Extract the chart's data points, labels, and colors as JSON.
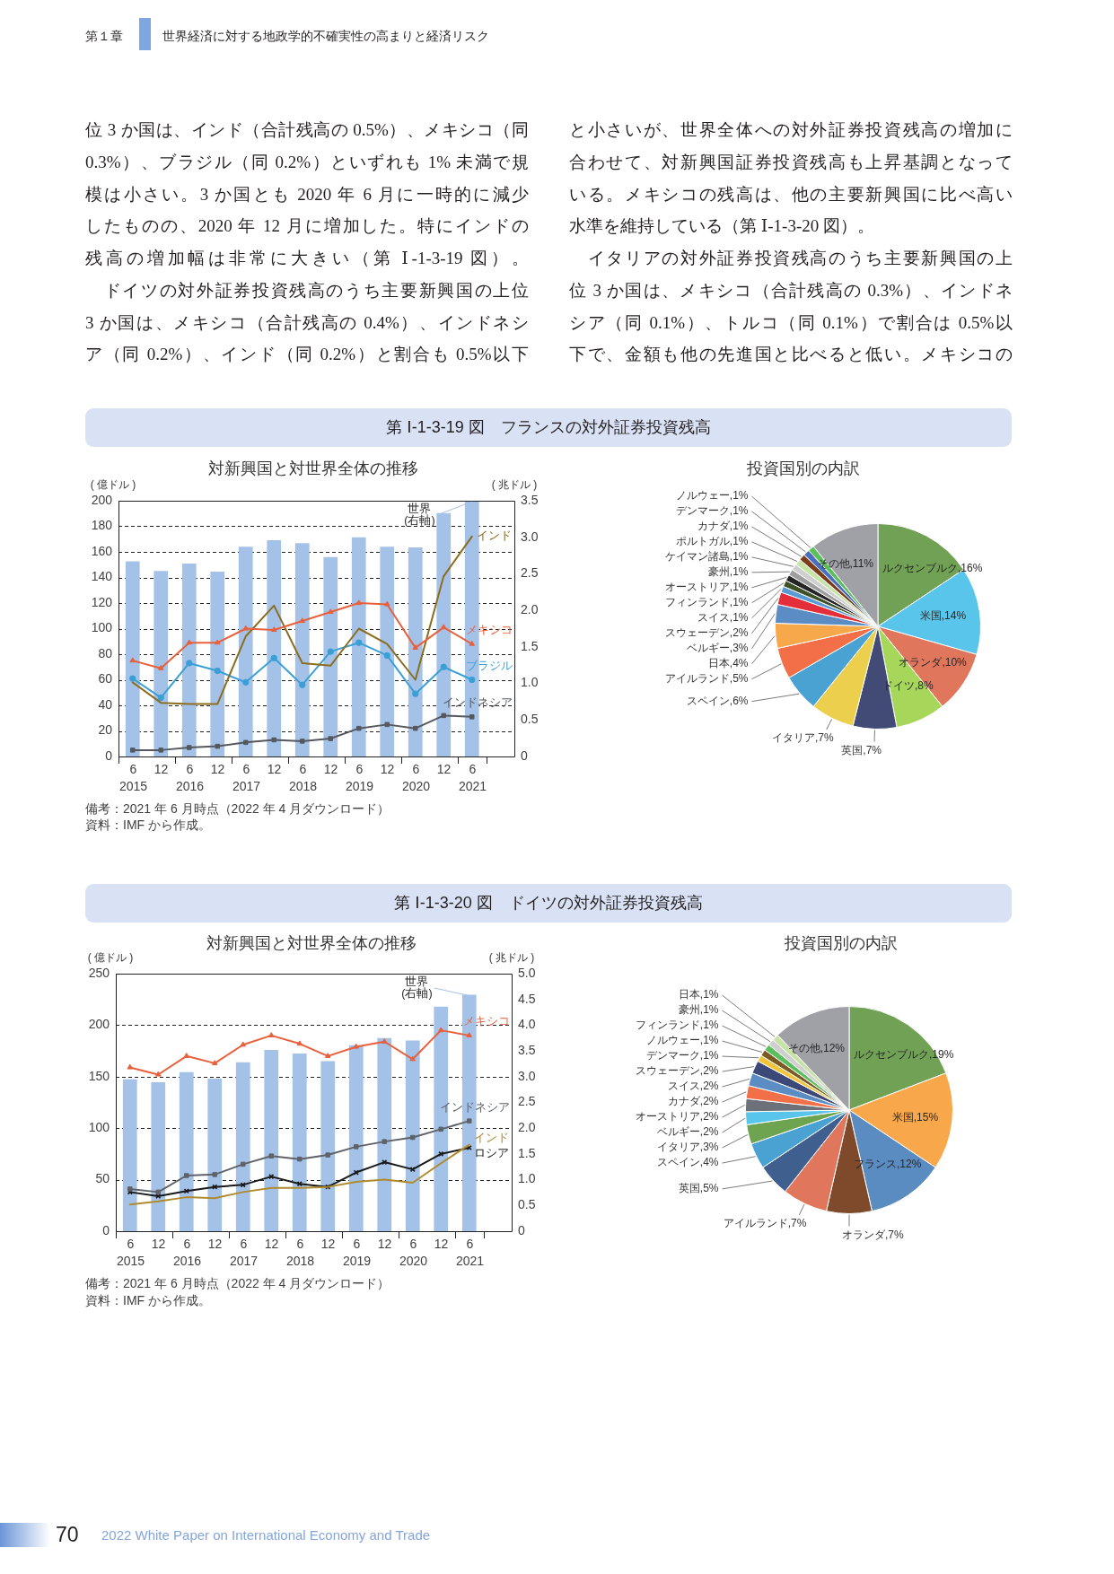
{
  "chart_data": [
    {
      "type": "other",
      "annotations": [
        "第１章",
        "世界経済に対する地政学的不確実性の高まりと経済リスク",
        "位 3 か国は、インド（合計残高の 0.5%）、メキシコ（同",
        "0.3%）、ブラジル（同 0.2%）といずれも 1% 未満で規",
        "模は小さい。3 か国とも 2020 年 6 月に一時的に減少",
        "したものの、2020 年 12 月に増加した。特にインドの",
        "残高の増加幅は非常に大きい（第 Ⅰ-1-3-19 図）。",
        "　ドイツの対外証券投資残高のうち主要新興国の上位",
        "3 か国は、メキシコ（合計残高の 0.4%）、インドネシ",
        "ア（同 0.2%）、インド（同 0.2%）と割合も 0.5%以下",
        "と小さいが、世界全体への対外証券投資残高の増加に",
        "合わせて、対新興国証券投資残高も上昇基調となって",
        "いる。メキシコの残高は、他の主要新興国に比べ高い",
        "水準を維持している（第 Ⅰ-1-3-20 図）。",
        "　イタリアの対外証券投資残高のうち主要新興国の上",
        "位 3 か国は、メキシコ（合計残高の 0.3%）、インドネ",
        "シア（同 0.1%）、トルコ（同 0.1%）で割合は 0.5%以",
        "下で、金額も他の先進国と比べると低い。メキシコの"
      ]
    },
    {
      "type": "bar",
      "title": "第 Ⅰ-1-3-19 図　フランスの対外証券投資残高",
      "subtitle": "対新興国と対世界全体の推移",
      "ylabel": "( 億ドル )",
      "y2label": "( 兆ドル )",
      "x": [
        "2015-06",
        "2015-12",
        "2016-06",
        "2016-12",
        "2017-06",
        "2017-12",
        "2018-06",
        "2018-12",
        "2019-06",
        "2019-12",
        "2020-06",
        "2020-12",
        "2021-06"
      ],
      "xlim": [
        "2015-03",
        "2022-03"
      ],
      "xticks": [
        {
          "value": "2015-03",
          "label": null
        },
        {
          "value": "2015-06",
          "label": "6\n2015"
        },
        {
          "value": "2015-12",
          "label": "12"
        },
        {
          "value": "2016-03",
          "label": null
        },
        {
          "value": "2016-06",
          "label": "6\n2016"
        },
        {
          "value": "2016-12",
          "label": "12"
        },
        {
          "value": "2017-03",
          "label": null
        },
        {
          "value": "2017-06",
          "label": "6\n2017"
        },
        {
          "value": "2017-12",
          "label": "12"
        },
        {
          "value": "2018-03",
          "label": null
        },
        {
          "value": "2018-06",
          "label": "6\n2018"
        },
        {
          "value": "2018-12",
          "label": "12"
        },
        {
          "value": "2019-03",
          "label": null
        },
        {
          "value": "2019-06",
          "label": "6\n2019"
        },
        {
          "value": "2019-12",
          "label": "12"
        },
        {
          "value": "2020-03",
          "label": null
        },
        {
          "value": "2020-06",
          "label": "6\n2020"
        },
        {
          "value": "2020-12",
          "label": "12"
        },
        {
          "value": "2021-03",
          "label": null
        },
        {
          "value": "2021-06",
          "label": "6\n2021"
        },
        {
          "value": "2021-09",
          "label": null
        }
      ],
      "ylim": [
        0,
        200
      ],
      "yticks": [
        0,
        20,
        40,
        60,
        80,
        100,
        120,
        140,
        160,
        180,
        200
      ],
      "y2lim": [
        0,
        3.5
      ],
      "y2ticks": [
        0,
        0.5,
        {
          "value": 1,
          "label": "1.0"
        },
        1.5,
        {
          "value": 2,
          "label": "2.0"
        },
        2.5,
        {
          "value": 3,
          "label": "3.0"
        },
        3.5
      ],
      "series": [
        {
          "name": "世界\n(右軸)",
          "type": "bar",
          "axis": "y2",
          "color": "#a4c2e8",
          "values": [
            2.67,
            2.54,
            2.64,
            2.53,
            2.87,
            2.96,
            2.92,
            2.73,
            3.0,
            2.87,
            2.86,
            3.33,
            3.5
          ]
        },
        {
          "name": "メキシコ",
          "type": "line",
          "marker": "triangle",
          "color": "#e8603c",
          "values": [
            75,
            69,
            89,
            89,
            100,
            99,
            106,
            113,
            120,
            119,
            85,
            101,
            88
          ]
        },
        {
          "name": "インド",
          "type": "line",
          "marker": "none",
          "color": "#8c6d1f",
          "values": [
            58,
            42,
            41,
            41,
            94,
            118,
            73,
            71,
            100,
            88,
            60,
            141,
            172
          ]
        },
        {
          "name": "ブラジル",
          "type": "line",
          "marker": "circle",
          "color": "#3b9fd6",
          "values": [
            61,
            46,
            73,
            67,
            58,
            77,
            56,
            82,
            89,
            79,
            49,
            70,
            60
          ]
        },
        {
          "name": "インドネシア",
          "type": "line",
          "marker": "square",
          "color": "#55585e",
          "values": [
            5,
            5,
            7,
            8,
            11,
            13,
            12,
            14,
            22,
            25,
            22,
            32,
            31
          ]
        }
      ],
      "grid": "y",
      "annotations": [
        "備考：2021 年 6 月時点（2022 年 4 月ダウンロード）",
        "資料：IMF から作成。"
      ]
    },
    {
      "type": "pie",
      "title": "投資国別の内訳",
      "categories": [
        "ルクセンブルク",
        "米国",
        "オランダ",
        "ドイツ",
        "英国",
        "イタリア",
        "スペイン",
        "アイルランド",
        "日本",
        "ベルギー",
        "スウェーデン",
        "スイス",
        "フィンランド",
        "オーストリア",
        "豪州",
        "ケイマン諸島",
        "ポルトガル",
        "カナダ",
        "デンマーク",
        "ノルウェー",
        "その他"
      ],
      "values": [
        16,
        14,
        10,
        8,
        7,
        7,
        6,
        5,
        4,
        3,
        2,
        1,
        1,
        1,
        1,
        1,
        1,
        1,
        1,
        1,
        11
      ],
      "value_labels": [
        "16%",
        "14%",
        "10%",
        "8%",
        "7%",
        "7%",
        "6%",
        "5%",
        "4%",
        "3%",
        "2%",
        "1%",
        "1%",
        "1%",
        "1%",
        "1%",
        "1%",
        "1%",
        "1%",
        "1%",
        "11%"
      ],
      "colors": [
        "#70a155",
        "#59c5ea",
        "#e0775c",
        "#a6d65a",
        "#424b75",
        "#eccf4c",
        "#4aa2d3",
        "#f26f48",
        "#f7a84a",
        "#5b8cc4",
        "#e42f3b",
        "#5b9bd5",
        "#3e5128",
        "#252525",
        "#9e9e9e",
        "#cfcfcf",
        "#c8e3a6",
        "#7a3e1f",
        "#4a6fc1",
        "#5bc05b",
        "#a0a1a6"
      ]
    },
    {
      "type": "bar",
      "title": "第 Ⅰ-1-3-20 図　ドイツの対外証券投資残高",
      "subtitle": "対新興国と対世界全体の推移",
      "ylabel": "( 億ドル )",
      "y2label": "( 兆ドル )",
      "x": [
        "2015-06",
        "2015-12",
        "2016-06",
        "2016-12",
        "2017-06",
        "2017-12",
        "2018-06",
        "2018-12",
        "2019-06",
        "2019-12",
        "2020-06",
        "2020-12",
        "2021-06"
      ],
      "xlim": [
        "2015-03",
        "2022-03"
      ],
      "xticks": [
        {
          "value": "2015-03",
          "label": null
        },
        {
          "value": "2015-06",
          "label": "6\n2015"
        },
        {
          "value": "2015-12",
          "label": "12"
        },
        {
          "value": "2016-03",
          "label": null
        },
        {
          "value": "2016-06",
          "label": "6\n2016"
        },
        {
          "value": "2016-12",
          "label": "12"
        },
        {
          "value": "2017-03",
          "label": null
        },
        {
          "value": "2017-06",
          "label": "6\n2017"
        },
        {
          "value": "2017-12",
          "label": "12"
        },
        {
          "value": "2018-03",
          "label": null
        },
        {
          "value": "2018-06",
          "label": "6\n2018"
        },
        {
          "value": "2018-12",
          "label": "12"
        },
        {
          "value": "2019-03",
          "label": null
        },
        {
          "value": "2019-06",
          "label": "6\n2019"
        },
        {
          "value": "2019-12",
          "label": "12"
        },
        {
          "value": "2020-03",
          "label": null
        },
        {
          "value": "2020-06",
          "label": "6\n2020"
        },
        {
          "value": "2020-12",
          "label": "12"
        },
        {
          "value": "2021-03",
          "label": null
        },
        {
          "value": "2021-06",
          "label": "6\n2021"
        },
        {
          "value": "2021-09",
          "label": null
        }
      ],
      "ylim": [
        0,
        250
      ],
      "yticks": [
        0,
        50,
        100,
        150,
        200,
        250
      ],
      "y2lim": [
        0,
        5
      ],
      "y2ticks": [
        0,
        0.5,
        {
          "value": 1,
          "label": "1.0"
        },
        1.5,
        {
          "value": 2,
          "label": "2.0"
        },
        2.5,
        {
          "value": 3,
          "label": "3.0"
        },
        3.5,
        {
          "value": 4,
          "label": "4.0"
        },
        4.5,
        {
          "value": 5,
          "label": "5.0"
        }
      ],
      "series": [
        {
          "name": "世界\n(右軸)",
          "type": "bar",
          "axis": "y2",
          "color": "#a4c2e8",
          "values": [
            2.95,
            2.89,
            3.09,
            2.96,
            3.28,
            3.52,
            3.45,
            3.3,
            3.61,
            3.75,
            3.7,
            4.36,
            4.59
          ]
        },
        {
          "name": "メキシコ",
          "type": "line",
          "marker": "triangle",
          "color": "#e8603c",
          "values": [
            159,
            152,
            170,
            163,
            181,
            190,
            182,
            170,
            179,
            184,
            167,
            195,
            190
          ]
        },
        {
          "name": "インドネシア",
          "type": "line",
          "marker": "square",
          "color": "#5f6369",
          "values": [
            41,
            38,
            54,
            55,
            65,
            73,
            70,
            74,
            82,
            87,
            91,
            99,
            107
          ]
        },
        {
          "name": "インド",
          "type": "line",
          "marker": "none",
          "color": "#b08a2e",
          "values": [
            26,
            29,
            33,
            32,
            38,
            42,
            42,
            43,
            48,
            50,
            47,
            66,
            84
          ]
        },
        {
          "name": "ロシア",
          "type": "line",
          "marker": "cross",
          "color": "#1a1a1a",
          "values": [
            38,
            34,
            39,
            43,
            45,
            53,
            46,
            43,
            57,
            67,
            60,
            75,
            81
          ]
        }
      ],
      "grid": "y",
      "annotations": [
        "備考：2021 年 6 月時点（2022 年 4 月ダウンロード）",
        "資料：IMF から作成。"
      ]
    },
    {
      "type": "pie",
      "title": "投資国別の内訳",
      "categories": [
        "ルクセンブルク",
        "米国",
        "フランス",
        "オランダ",
        "アイルランド",
        "英国",
        "スペイン",
        "イタリア",
        "ベルギー",
        "オーストリア",
        "カナダ",
        "スイス",
        "スウェーデン",
        "デンマーク",
        "ノルウェー",
        "フィンランド",
        "豪州",
        "日本",
        "その他"
      ],
      "values": [
        19,
        15,
        12,
        7,
        7,
        5,
        4,
        3,
        2,
        2,
        2,
        2,
        2,
        1,
        1,
        1,
        1,
        1,
        12
      ],
      "value_labels": [
        "19%",
        "15%",
        "12%",
        "7%",
        "7%",
        "5%",
        "4%",
        "3%",
        "2%",
        "2%",
        "2%",
        "2%",
        "2%",
        "1%",
        "1%",
        "1%",
        "1%",
        "1%",
        "12%"
      ],
      "colors": [
        "#70a155",
        "#f8a84a",
        "#5b8cc1",
        "#7e4a2b",
        "#e0775c",
        "#3f5f8f",
        "#4aa2d3",
        "#6ea450",
        "#59c5ea",
        "#6c7179",
        "#f26f48",
        "#5b8cc4",
        "#3c4878",
        "#eec53b",
        "#7b5a24",
        "#5bc05b",
        "#cfcfcf",
        "#c8e3a6",
        "#a0a1a6"
      ]
    },
    {
      "type": "other",
      "annotations": [
        "70",
        "2022 White Paper on International Economy and Trade"
      ]
    }
  ]
}
